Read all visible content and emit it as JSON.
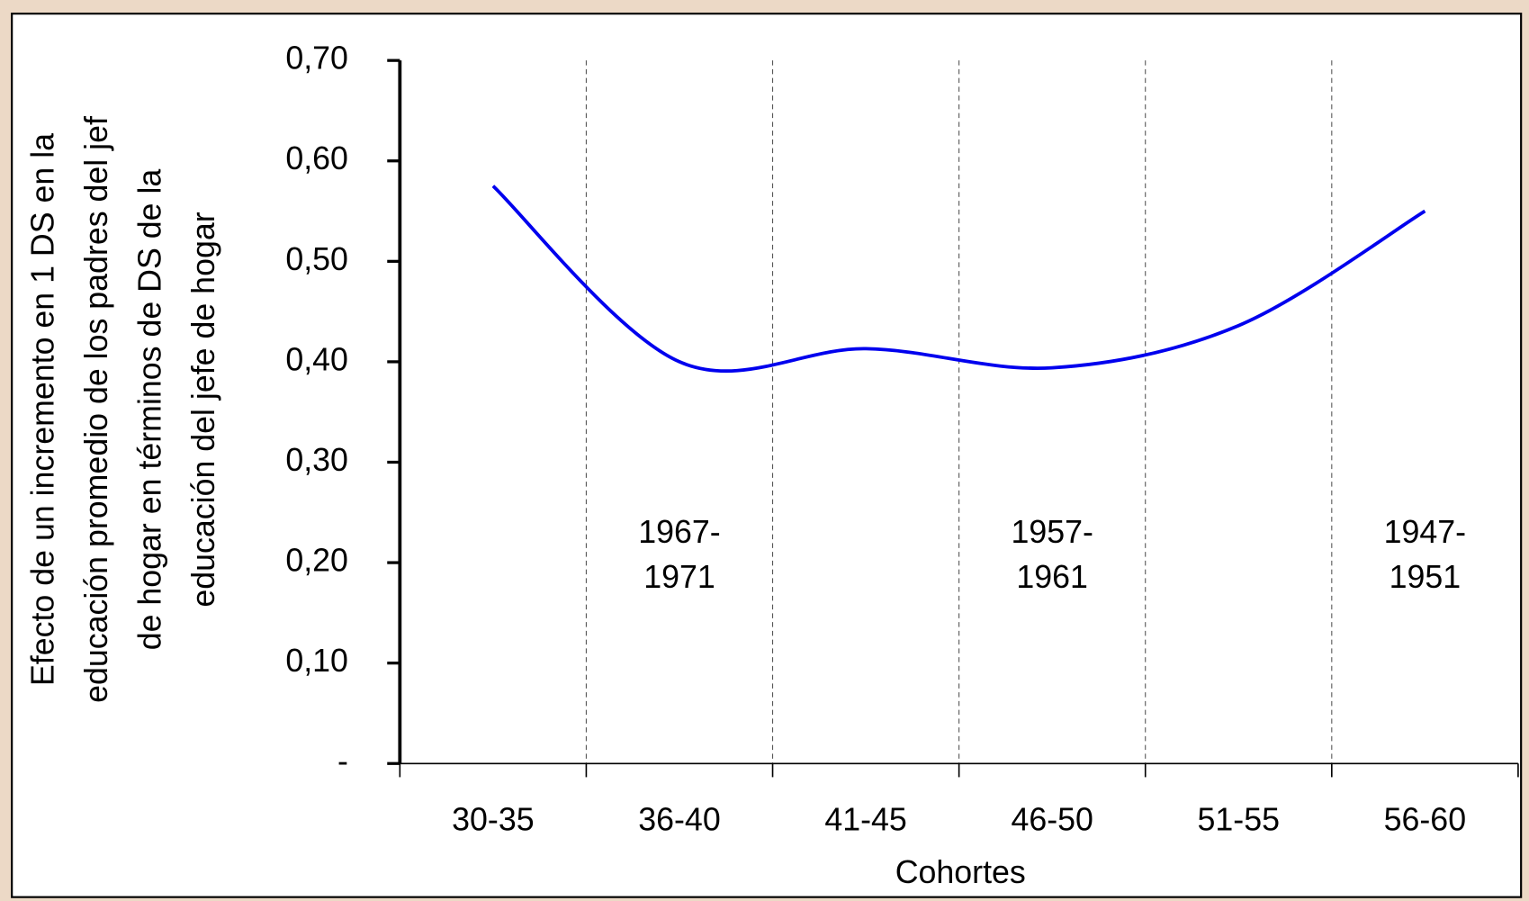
{
  "chart_data": {
    "type": "line",
    "y_label": [
      "Efecto de un incremento en 1 DS en la",
      "educación promedio de los padres del jef",
      "de hogar en términos de DS de la",
      "educación del jefe de hogar"
    ],
    "x_label": "Cohortes",
    "categories": [
      "30-35",
      "36-40",
      "41-45",
      "46-50",
      "51-55",
      "56-60"
    ],
    "series": [
      {
        "name": "Efecto",
        "color": "#0000ee",
        "values": [
          0.575,
          0.4,
          0.413,
          0.394,
          0.436,
          0.55
        ]
      }
    ],
    "ylim": [
      0,
      0.7
    ],
    "yticks": [
      {
        "value": 0,
        "label": "-"
      },
      {
        "value": 0.1,
        "label": "0,10"
      },
      {
        "value": 0.2,
        "label": "0,20"
      },
      {
        "value": 0.3,
        "label": "0,30"
      },
      {
        "value": 0.4,
        "label": "0,40"
      },
      {
        "value": 0.5,
        "label": "0,50"
      },
      {
        "value": 0.6,
        "label": "0,60"
      },
      {
        "value": 0.7,
        "label": "0,70"
      }
    ],
    "annotations": [
      {
        "lines": [
          "1967-",
          "1971"
        ]
      },
      {
        "lines": [
          "1957-",
          "1961"
        ]
      },
      {
        "lines": [
          "1947-",
          "1951"
        ]
      }
    ]
  }
}
